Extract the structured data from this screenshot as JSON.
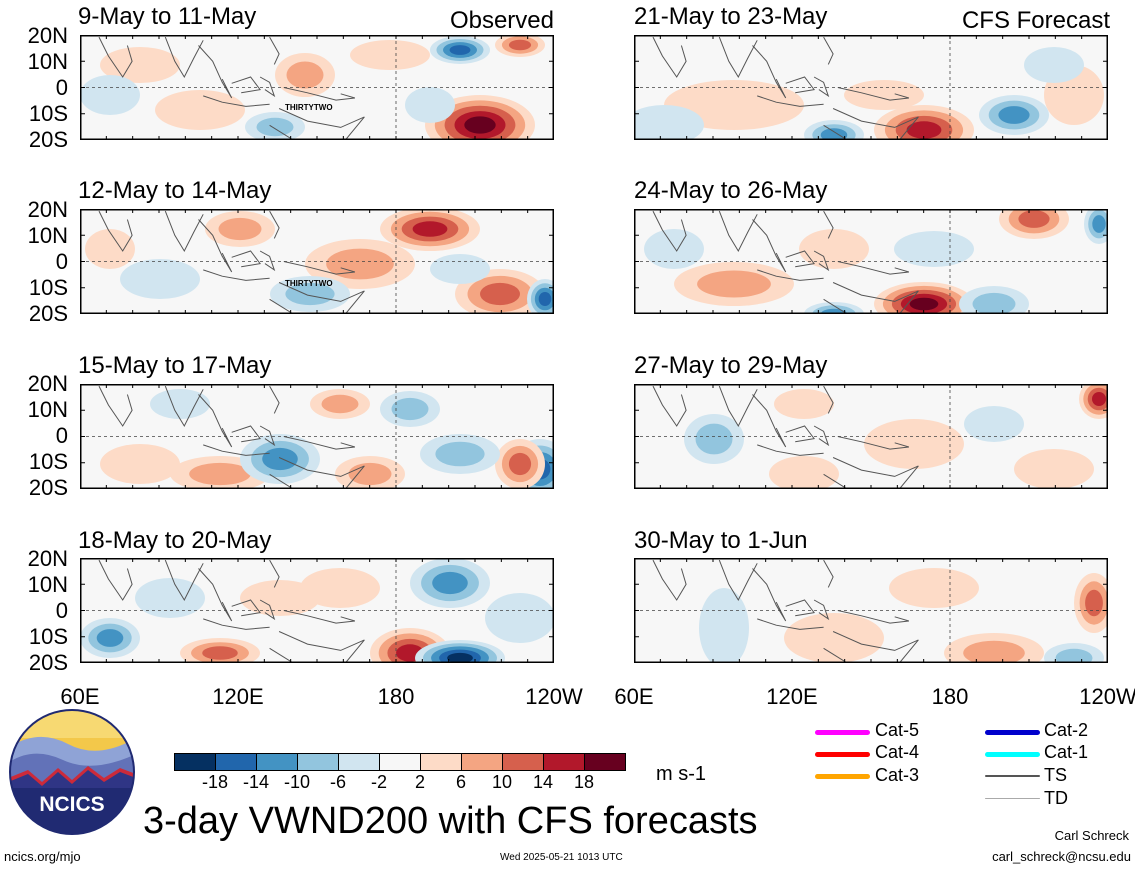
{
  "figure": {
    "main_title": "3-day VWND200 with CFS forecasts",
    "units": "m s-1",
    "footer_left": "ncics.org/mjo",
    "footer_center": "Wed 2025-05-21 1013 UTC",
    "author": "Carl Schreck",
    "email": "carl_schreck@ncsu.edu",
    "logo_text": "NCICS"
  },
  "tags": {
    "observed": "Observed",
    "forecast": "CFS Forecast"
  },
  "storm_label": "THIRTYTWO",
  "y_ticks": [
    "20N",
    "10N",
    "0",
    "10S",
    "20S"
  ],
  "x_ticks": [
    "60E",
    "120E",
    "180",
    "120W"
  ],
  "panels": [
    {
      "title": "9-May to 11-May",
      "col": 0,
      "row": 0,
      "storm": true
    },
    {
      "title": "12-May to 14-May",
      "col": 0,
      "row": 1,
      "storm": true
    },
    {
      "title": "15-May to 17-May",
      "col": 0,
      "row": 2,
      "storm": false
    },
    {
      "title": "18-May to 20-May",
      "col": 0,
      "row": 3,
      "storm": false
    },
    {
      "title": "21-May to 23-May",
      "col": 1,
      "row": 0,
      "storm": false
    },
    {
      "title": "24-May to 26-May",
      "col": 1,
      "row": 1,
      "storm": false
    },
    {
      "title": "27-May to 29-May",
      "col": 1,
      "row": 2,
      "storm": false
    },
    {
      "title": "30-May to 1-Jun",
      "col": 1,
      "row": 3,
      "storm": false
    }
  ],
  "colorbar": {
    "labels": [
      "-18",
      "-14",
      "-10",
      "-6",
      "-2",
      "2",
      "6",
      "10",
      "14",
      "18"
    ],
    "colors": [
      "#053061",
      "#2166ac",
      "#4393c3",
      "#92c5de",
      "#d1e5f0",
      "#f7f7f7",
      "#fddbc7",
      "#f4a582",
      "#d6604d",
      "#b2182b",
      "#67001f"
    ]
  },
  "legend": [
    {
      "label": "Cat-5",
      "color": "#ff00ff"
    },
    {
      "label": "Cat-4",
      "color": "#ff0000"
    },
    {
      "label": "Cat-3",
      "color": "#ffa500"
    },
    {
      "label": "Cat-2",
      "color": "#0000cc"
    },
    {
      "label": "Cat-1",
      "color": "#00ffff"
    },
    {
      "label": "TS",
      "color": "#555555"
    },
    {
      "label": "TD",
      "color": "#aaaaaa"
    }
  ]
}
